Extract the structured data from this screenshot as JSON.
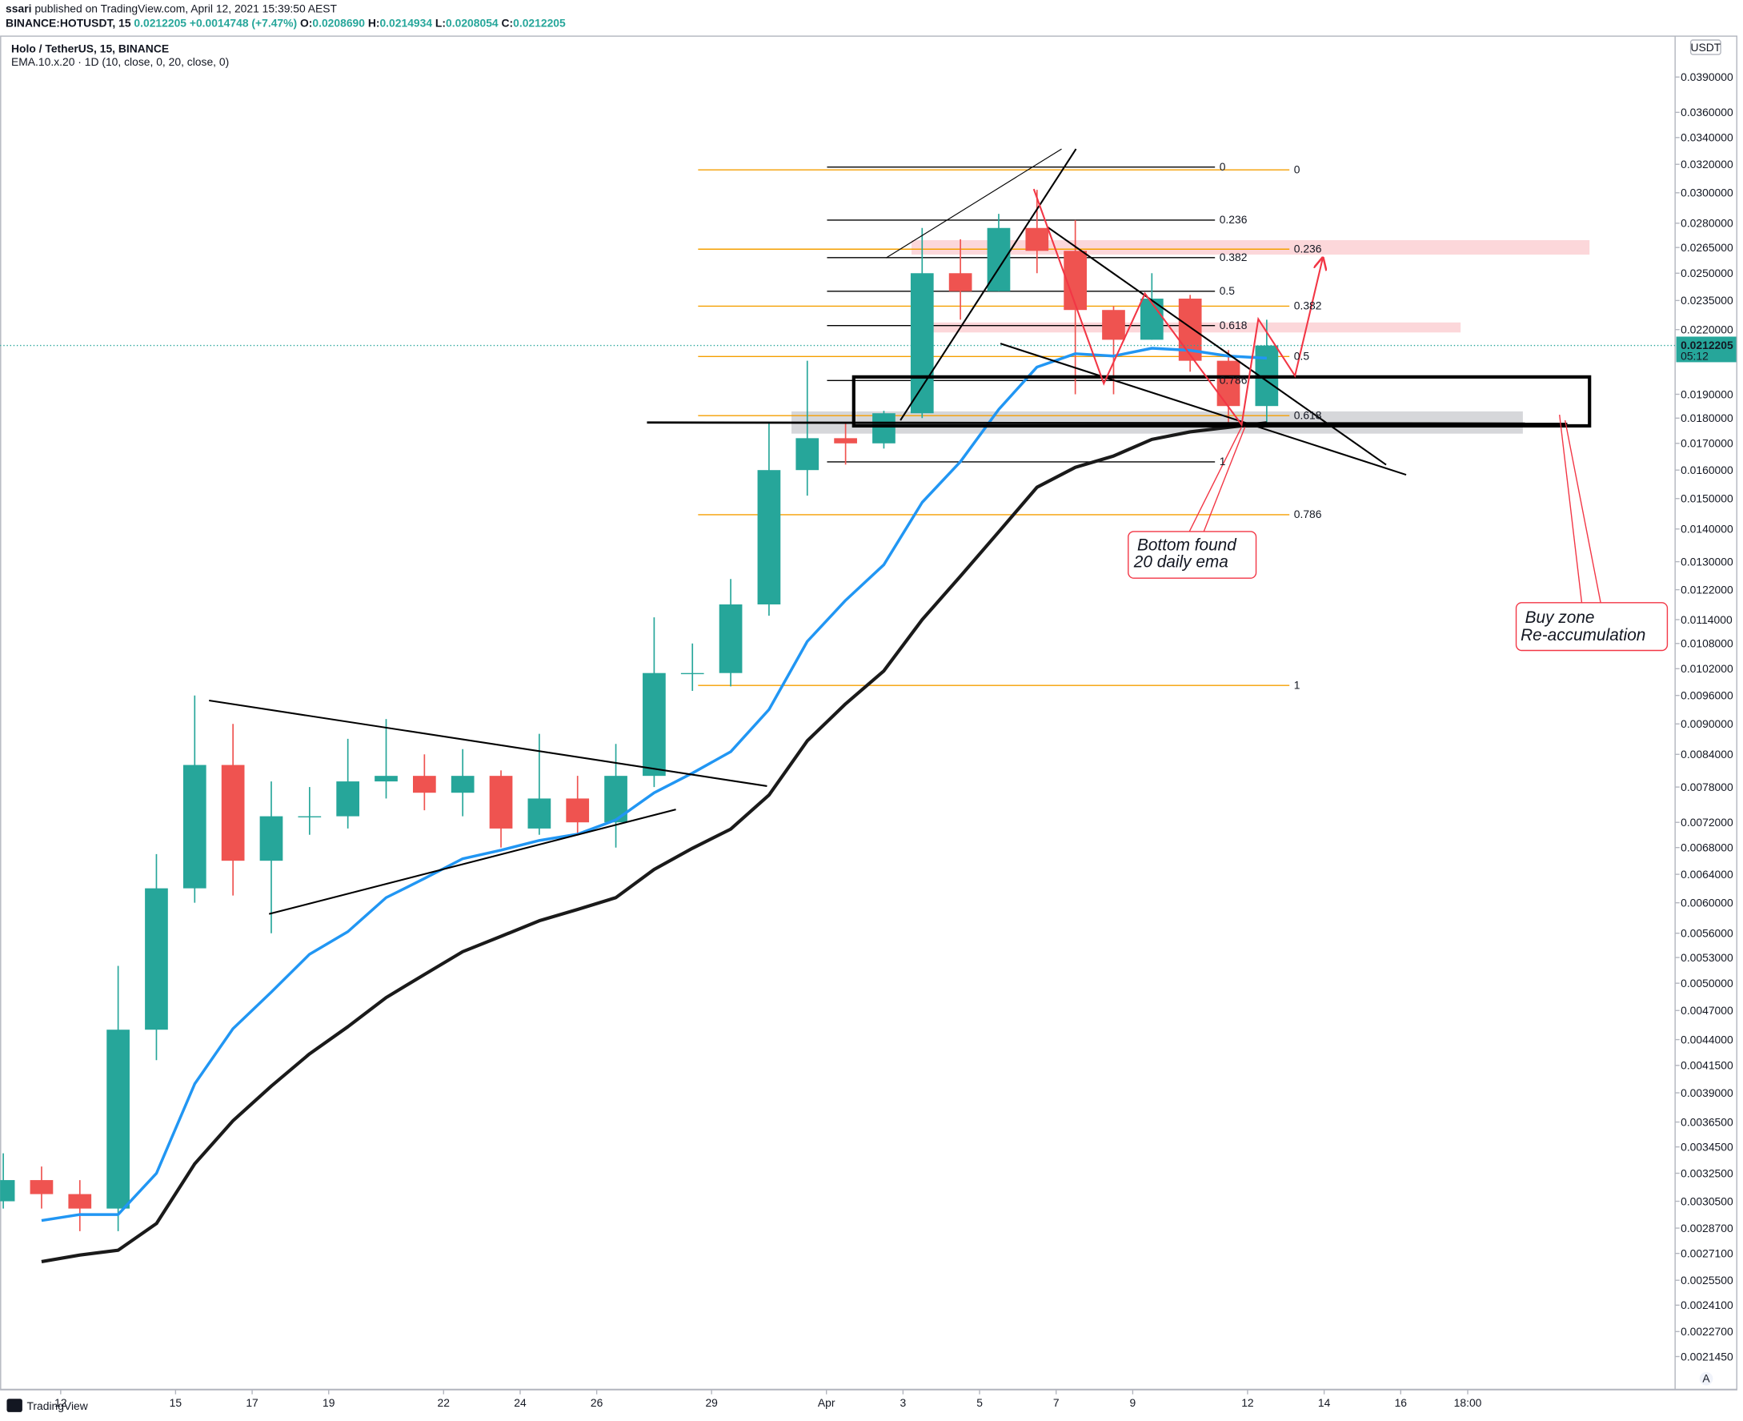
{
  "header": {
    "author": "ssari",
    "published": "published on TradingView.com, April 12, 2021 15:39:50 AEST",
    "symbol": "BINANCE:HOTUSDT, 15",
    "last": "0.0212205",
    "change": "+0.0014748 (+7.47%)",
    "ohlc": [
      [
        "O:",
        "0.0208690"
      ],
      [
        "H:",
        "0.0214934"
      ],
      [
        "L:",
        "0.0208054"
      ],
      [
        "C:",
        "0.0212205"
      ]
    ]
  },
  "chart_data": {
    "type": "candlestick",
    "title": "Holo / TetherUS, 15, BINANCE",
    "subtitle": "EMA.10.x.20 · 1D (10, close, 0, 20, close, 0)",
    "currency": "USDT",
    "log": true,
    "grid": false,
    "x": [
      "2021-03-10",
      "2021-03-11",
      "2021-03-12",
      "2021-03-13",
      "2021-03-14",
      "2021-03-15",
      "2021-03-16",
      "2021-03-17",
      "2021-03-18",
      "2021-03-19",
      "2021-03-20",
      "2021-03-21",
      "2021-03-22",
      "2021-03-23",
      "2021-03-24",
      "2021-03-25",
      "2021-03-26",
      "2021-03-27",
      "2021-03-28",
      "2021-03-29",
      "2021-03-30",
      "2021-03-31",
      "2021-04-01",
      "2021-04-02",
      "2021-04-03",
      "2021-04-04",
      "2021-04-05",
      "2021-04-06",
      "2021-04-07",
      "2021-04-08",
      "2021-04-09",
      "2021-04-10",
      "2021-04-11",
      "2021-04-12"
    ],
    "open": [
      0.00305,
      0.0032,
      0.0031,
      0.003,
      0.0045,
      0.0062,
      0.0082,
      0.0066,
      0.0073,
      0.0073,
      0.0079,
      0.008,
      0.0077,
      0.008,
      0.0071,
      0.0076,
      0.0072,
      0.008,
      0.0101,
      0.0101,
      0.0118,
      0.016,
      0.0172,
      0.017,
      0.0182,
      0.025,
      0.024,
      0.0277,
      0.0263,
      0.023,
      0.0215,
      0.0236,
      0.0205,
      0.0185
    ],
    "high": [
      0.0034,
      0.0033,
      0.0032,
      0.0052,
      0.0067,
      0.0096,
      0.009,
      0.0079,
      0.0078,
      0.0087,
      0.0091,
      0.0084,
      0.0085,
      0.0081,
      0.0088,
      0.008,
      0.0086,
      0.01146,
      0.0108,
      0.0125,
      0.0178,
      0.0205,
      0.0178,
      0.0183,
      0.0277,
      0.027,
      0.0286,
      0.0302,
      0.0282,
      0.0232,
      0.025,
      0.0238,
      0.021,
      0.0225
    ],
    "low": [
      0.003,
      0.003,
      0.00285,
      0.00285,
      0.0042,
      0.006,
      0.0061,
      0.0056,
      0.007,
      0.0071,
      0.0076,
      0.0074,
      0.0073,
      0.0068,
      0.007,
      0.007,
      0.0068,
      0.0078,
      0.0097,
      0.0098,
      0.0115,
      0.0151,
      0.0162,
      0.0168,
      0.018,
      0.0225,
      0.024,
      0.025,
      0.019,
      0.019,
      0.0215,
      0.02,
      0.0177,
      0.0178
    ],
    "close": [
      0.0032,
      0.0031,
      0.003,
      0.0045,
      0.0062,
      0.0082,
      0.0066,
      0.0073,
      0.0073,
      0.0079,
      0.008,
      0.0077,
      0.008,
      0.0071,
      0.0076,
      0.0072,
      0.008,
      0.0101,
      0.0101,
      0.0118,
      0.016,
      0.0172,
      0.017,
      0.0182,
      0.025,
      0.024,
      0.0277,
      0.0263,
      0.023,
      0.0215,
      0.0236,
      0.0205,
      0.0185,
      0.0212205
    ],
    "up_color": "#26a69a",
    "down_color": "#ef5350",
    "ema_lines": [
      {
        "color": "#2196f3",
        "values": [
          null,
          0.00292,
          0.00296,
          0.00296,
          0.00325,
          0.00398,
          0.00451,
          0.0049,
          0.00534,
          0.00562,
          0.00607,
          0.00634,
          0.00663,
          0.00676,
          0.00691,
          0.00701,
          0.00724,
          0.0077,
          0.00805,
          0.00845,
          0.0093,
          0.01085,
          0.01191,
          0.01291,
          0.01487,
          0.01631,
          0.01836,
          0.02021,
          0.02083,
          0.02072,
          0.02109,
          0.02099,
          0.02072,
          0.02062
        ]
      },
      {
        "color": "#1a1a1a",
        "values": [
          null,
          0.00266,
          0.0027,
          0.00273,
          0.0029,
          0.00332,
          0.00366,
          0.00396,
          0.00426,
          0.00453,
          0.00484,
          0.0051,
          0.00537,
          0.00556,
          0.00576,
          0.00591,
          0.00607,
          0.00647,
          0.00679,
          0.00709,
          0.00766,
          0.00866,
          0.00942,
          0.01015,
          0.0114,
          0.01258,
          0.01391,
          0.01539,
          0.0161,
          0.01652,
          0.01715,
          0.01745,
          0.01763,
          0.01781
        ]
      }
    ],
    "fib": [
      {
        "color": "#000000",
        "levels": [
          0,
          0.236,
          0.382,
          0.5,
          0.618,
          0.786,
          1
        ],
        "values": [
          0.0318,
          0.0282,
          0.0259,
          0.024,
          0.0222,
          0.0196,
          0.0163
        ]
      },
      {
        "color": "#f59f00",
        "levels": [
          0,
          0.236,
          0.382,
          0.5,
          0.618,
          0.786,
          1
        ],
        "values": [
          0.0316,
          0.0264,
          0.0232,
          0.0207,
          0.0181,
          0.01446,
          0.00982
        ]
      }
    ],
    "annotations": [
      [
        "Bottom found",
        "20 daily ema"
      ],
      [
        "Buy zone",
        "Re-accumulation"
      ]
    ],
    "last_price": {
      "value": 0.0212205,
      "label": "0.0212205"
    },
    "countdown": "05:12",
    "xlim": [
      "2021-03-10T10:00",
      "2021-04-23T04:00"
    ],
    "xticks": [
      {
        "value": "2021-03-12",
        "label": "12"
      },
      {
        "value": "2021-03-15",
        "label": "15"
      },
      {
        "value": "2021-03-17",
        "label": "17"
      },
      {
        "value": "2021-03-19",
        "label": "19"
      },
      {
        "value": "2021-03-22",
        "label": "22"
      },
      {
        "value": "2021-03-24",
        "label": "24"
      },
      {
        "value": "2021-03-26",
        "label": "26"
      },
      {
        "value": "2021-03-29",
        "label": "29"
      },
      {
        "value": "2021-04-01",
        "label": "Apr"
      },
      {
        "value": "2021-04-03",
        "label": "3"
      },
      {
        "value": "2021-04-05",
        "label": "5"
      },
      {
        "value": "2021-04-07",
        "label": "7"
      },
      {
        "value": "2021-04-09",
        "label": "9"
      },
      {
        "value": "2021-04-12",
        "label": "12"
      },
      {
        "value": "2021-04-14",
        "label": "14"
      },
      {
        "value": "2021-04-16",
        "label": "16"
      },
      {
        "value": "2021-04-17T18:00",
        "label": "18:00"
      }
    ],
    "ylim": [
      0.001989,
      0.04252
    ],
    "yticks": [
      {
        "value": 0.039,
        "label": "0.0390000"
      },
      {
        "value": 0.036,
        "label": "0.0360000"
      },
      {
        "value": 0.034,
        "label": "0.0340000"
      },
      {
        "value": 0.032,
        "label": "0.0320000"
      },
      {
        "value": 0.03,
        "label": "0.0300000"
      },
      {
        "value": 0.028,
        "label": "0.0280000"
      },
      {
        "value": 0.0265,
        "label": "0.0265000"
      },
      {
        "value": 0.025,
        "label": "0.0250000"
      },
      {
        "value": 0.0235,
        "label": "0.0235000"
      },
      {
        "value": 0.022,
        "label": "0.0220000"
      },
      {
        "value": 0.019,
        "label": "0.0190000"
      },
      {
        "value": 0.018,
        "label": "0.0180000"
      },
      {
        "value": 0.017,
        "label": "0.0170000"
      },
      {
        "value": 0.016,
        "label": "0.0160000"
      },
      {
        "value": 0.015,
        "label": "0.0150000"
      },
      {
        "value": 0.014,
        "label": "0.0140000"
      },
      {
        "value": 0.013,
        "label": "0.0130000"
      },
      {
        "value": 0.0122,
        "label": "0.0122000"
      },
      {
        "value": 0.0114,
        "label": "0.0114000"
      },
      {
        "value": 0.0108,
        "label": "0.0108000"
      },
      {
        "value": 0.0102,
        "label": "0.0102000"
      },
      {
        "value": 0.0096,
        "label": "0.0096000"
      },
      {
        "value": 0.009,
        "label": "0.0090000"
      },
      {
        "value": 0.0084,
        "label": "0.0084000"
      },
      {
        "value": 0.0078,
        "label": "0.0078000"
      },
      {
        "value": 0.0072,
        "label": "0.0072000"
      },
      {
        "value": 0.0068,
        "label": "0.0068000"
      },
      {
        "value": 0.0064,
        "label": "0.0064000"
      },
      {
        "value": 0.006,
        "label": "0.0060000"
      },
      {
        "value": 0.0056,
        "label": "0.0056000"
      },
      {
        "value": 0.0053,
        "label": "0.0053000"
      },
      {
        "value": 0.005,
        "label": "0.0050000"
      },
      {
        "value": 0.0047,
        "label": "0.0047000"
      },
      {
        "value": 0.0044,
        "label": "0.0044000"
      },
      {
        "value": 0.00415,
        "label": "0.0041500"
      },
      {
        "value": 0.0039,
        "label": "0.0039000"
      },
      {
        "value": 0.00365,
        "label": "0.0036500"
      },
      {
        "value": 0.00345,
        "label": "0.0034500"
      },
      {
        "value": 0.00325,
        "label": "0.0032500"
      },
      {
        "value": 0.00305,
        "label": "0.0030500"
      },
      {
        "value": 0.00287,
        "label": "0.0028700"
      },
      {
        "value": 0.00271,
        "label": "0.0027100"
      },
      {
        "value": 0.00255,
        "label": "0.0025500"
      },
      {
        "value": 0.00241,
        "label": "0.0024100"
      },
      {
        "value": 0.00227,
        "label": "0.0022700"
      },
      {
        "value": 0.002145,
        "label": "0.0021450"
      }
    ]
  },
  "footer": {
    "brand": "TradingView",
    "scale_mode": "A"
  }
}
